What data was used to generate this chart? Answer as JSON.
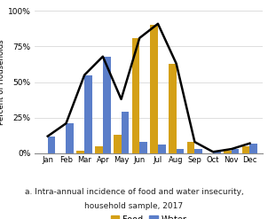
{
  "months": [
    "Jan",
    "Feb",
    "Mar",
    "Apr",
    "May",
    "Jun",
    "Jul",
    "Aug",
    "Sep",
    "Oct",
    "Nov",
    "Dec"
  ],
  "food": [
    0,
    0,
    2,
    5,
    13,
    81,
    90,
    63,
    8,
    0,
    2,
    5
  ],
  "water": [
    12,
    21,
    55,
    68,
    29,
    8,
    6,
    3,
    3,
    1,
    3,
    7
  ],
  "line": [
    12,
    21,
    55,
    68,
    38,
    81,
    91,
    63,
    8,
    1,
    3,
    7
  ],
  "food_color": "#D4A017",
  "water_color": "#5B7EC9",
  "line_color": "#000000",
  "ylabel": "Percent of Households",
  "ylim": [
    0,
    100
  ],
  "yticks": [
    0,
    25,
    50,
    75,
    100
  ],
  "ytick_labels": [
    "0%",
    "25%",
    "50%",
    "75%",
    "100%"
  ],
  "legend_food": "Food",
  "legend_water": "Water",
  "caption_line1": "a. Intra-annual incidence of food and water insecurity,",
  "caption_line2": "household sample, 2017",
  "background_color": "#FFFFFF",
  "grid_color": "#D8D8D8"
}
